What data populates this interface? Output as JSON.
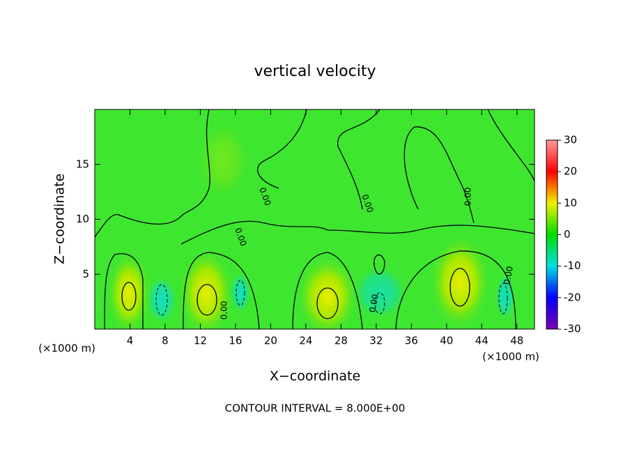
{
  "chart_data": {
    "type": "contour",
    "title": "vertical velocity",
    "x_label": "X−coordinate",
    "y_label": "Z−coordinate",
    "x_unit": "(×1000 m)",
    "y_unit": "(×1000 m)",
    "footnote": "CONTOUR INTERVAL = 8.000E+00",
    "contour_labels": [
      "0.00",
      "0.00",
      "0.00",
      "0.00",
      "0.00",
      "0.00",
      "0.00"
    ],
    "xlim": [
      0,
      50
    ],
    "xticks": [
      4,
      8,
      12,
      16,
      20,
      24,
      28,
      32,
      36,
      40,
      44,
      48
    ],
    "ylim": [
      0,
      20
    ],
    "yticks": [
      5,
      10,
      15
    ],
    "colorbar_lim": [
      -30,
      30
    ],
    "colorbar_ticks": [
      30,
      20,
      10,
      0,
      -10,
      -20,
      -30
    ],
    "colormap": [
      "#8000b0",
      "#0000ff",
      "#00e0e0",
      "#00dd00",
      "#f0f000",
      "#ff0000",
      "#ff9a9a"
    ]
  }
}
